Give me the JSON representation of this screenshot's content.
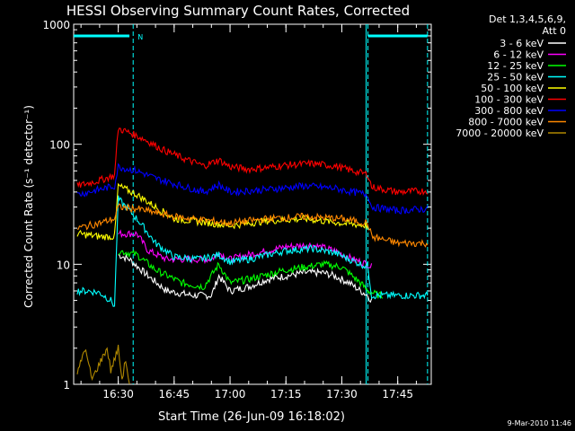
{
  "chart_data": {
    "type": "line",
    "title": "HESSI Observing Summary Count Rates, Corrected",
    "ylabel": "Corrected Count Rate (s⁻¹ detector⁻¹)",
    "xlabel": "Start Time (26-Jun-09 16:18:02)",
    "x_ticks": [
      "16:30",
      "16:45",
      "17:00",
      "17:15",
      "17:30",
      "17:45"
    ],
    "y_ticks": [
      "1",
      "10",
      "100",
      "1000"
    ],
    "y_scale": "log",
    "ylim": [
      1,
      1000
    ],
    "xlim": [
      "16:18:02",
      "17:54"
    ],
    "legend_header": [
      "Det 1,3,4,5,6,9,",
      "Att 0"
    ],
    "legend_placement": "right",
    "footer_date": "9-Mar-2010 11:46",
    "event_marks": [
      {
        "time": "16:34",
        "label": "N"
      },
      {
        "time": "17:37",
        "label": ""
      },
      {
        "time": "17:53",
        "label": ""
      }
    ],
    "flag_bars": {
      "color": "#00ffff",
      "value": 800,
      "segments": [
        [
          "16:18:02",
          "16:33"
        ],
        [
          "17:37",
          "17:53"
        ]
      ]
    },
    "series": [
      {
        "name": "3 - 6 keV",
        "color": "#ffffff",
        "points": [
          [
            "16:30",
            12
          ],
          [
            "16:33",
            11
          ],
          [
            "16:38",
            8
          ],
          [
            "16:43",
            6
          ],
          [
            "16:50",
            5.5
          ],
          [
            "16:55",
            5.5
          ],
          [
            "16:57",
            8
          ],
          [
            "17:00",
            6
          ],
          [
            "17:05",
            6.5
          ],
          [
            "17:10",
            7.5
          ],
          [
            "17:15",
            8
          ],
          [
            "17:20",
            8.5
          ],
          [
            "17:25",
            8.5
          ],
          [
            "17:28",
            8
          ],
          [
            "17:32",
            7
          ],
          [
            "17:35",
            6
          ],
          [
            "17:37",
            5.5
          ],
          [
            "17:38",
            5
          ]
        ]
      },
      {
        "name": "6 - 12 keV",
        "color": "#ff00ff",
        "points": [
          [
            "16:30",
            18
          ],
          [
            "16:35",
            18
          ],
          [
            "16:38",
            13
          ],
          [
            "16:43",
            11
          ],
          [
            "16:50",
            11
          ],
          [
            "16:55",
            11
          ],
          [
            "16:57",
            12.5
          ],
          [
            "17:00",
            11
          ],
          [
            "17:05",
            12
          ],
          [
            "17:15",
            14
          ],
          [
            "17:22",
            14.5
          ],
          [
            "17:28",
            13
          ],
          [
            "17:33",
            11
          ],
          [
            "17:37",
            10
          ],
          [
            "17:38",
            9.5
          ]
        ]
      },
      {
        "name": "12 - 25 keV",
        "color": "#00ff00",
        "points": [
          [
            "16:30",
            13
          ],
          [
            "16:35",
            12
          ],
          [
            "16:40",
            9
          ],
          [
            "16:47",
            7
          ],
          [
            "16:53",
            6.5
          ],
          [
            "16:57",
            10
          ],
          [
            "17:00",
            7
          ],
          [
            "17:05",
            7.5
          ],
          [
            "17:15",
            9
          ],
          [
            "17:25",
            10
          ],
          [
            "17:30",
            9.5
          ],
          [
            "17:35",
            7
          ],
          [
            "17:37",
            6
          ],
          [
            "17:40",
            5.5
          ],
          [
            "17:41",
            5.5
          ]
        ]
      },
      {
        "name": "25 - 50 keV",
        "color": "#00ffff",
        "points": [
          [
            "16:19",
            6
          ],
          [
            "16:22",
            6
          ],
          [
            "16:25",
            5.8
          ],
          [
            "16:28",
            5
          ],
          [
            "16:29",
            4.5
          ],
          [
            "16:30",
            35
          ],
          [
            "16:33",
            28
          ],
          [
            "16:36",
            22
          ],
          [
            "16:40",
            15
          ],
          [
            "16:45",
            11.5
          ],
          [
            "16:52",
            11
          ],
          [
            "16:57",
            12
          ],
          [
            "17:00",
            10.5
          ],
          [
            "17:05",
            11
          ],
          [
            "17:15",
            13
          ],
          [
            "17:22",
            13.5
          ],
          [
            "17:28",
            12.5
          ],
          [
            "17:32",
            11
          ],
          [
            "17:37",
            9.5
          ],
          [
            "17:38",
            5.5
          ],
          [
            "17:45",
            5.5
          ],
          [
            "17:53",
            5.5
          ]
        ]
      },
      {
        "name": "50 - 100 keV",
        "color": "#ffff00",
        "points": [
          [
            "16:19",
            18
          ],
          [
            "16:25",
            17
          ],
          [
            "16:29",
            17
          ],
          [
            "16:30",
            45
          ],
          [
            "16:35",
            38
          ],
          [
            "16:40",
            30
          ],
          [
            "16:45",
            24
          ],
          [
            "16:55",
            22
          ],
          [
            "17:00",
            21
          ],
          [
            "17:10",
            23
          ],
          [
            "17:20",
            24
          ],
          [
            "17:30",
            22
          ],
          [
            "17:37",
            21
          ]
        ]
      },
      {
        "name": "100 - 300 keV",
        "color": "#ff0000",
        "points": [
          [
            "16:19",
            45
          ],
          [
            "16:25",
            50
          ],
          [
            "16:29",
            55
          ],
          [
            "16:30",
            135
          ],
          [
            "16:33",
            125
          ],
          [
            "16:37",
            110
          ],
          [
            "16:42",
            90
          ],
          [
            "16:48",
            75
          ],
          [
            "16:53",
            66
          ],
          [
            "16:57",
            74
          ],
          [
            "17:00",
            65
          ],
          [
            "17:05",
            62
          ],
          [
            "17:10",
            64
          ],
          [
            "17:15",
            67
          ],
          [
            "17:22",
            69
          ],
          [
            "17:28",
            66
          ],
          [
            "17:33",
            60
          ],
          [
            "17:37",
            56
          ],
          [
            "17:38",
            44
          ],
          [
            "17:45",
            40
          ],
          [
            "17:53",
            41
          ]
        ]
      },
      {
        "name": "300 - 800 keV",
        "color": "#0000ff",
        "points": [
          [
            "16:19",
            38
          ],
          [
            "16:25",
            42
          ],
          [
            "16:29",
            45
          ],
          [
            "16:30",
            65
          ],
          [
            "16:35",
            60
          ],
          [
            "16:40",
            52
          ],
          [
            "16:47",
            45
          ],
          [
            "16:53",
            40
          ],
          [
            "16:57",
            46
          ],
          [
            "17:00",
            40
          ],
          [
            "17:10",
            42
          ],
          [
            "17:20",
            45
          ],
          [
            "17:28",
            43
          ],
          [
            "17:33",
            40
          ],
          [
            "17:37",
            38
          ],
          [
            "17:38",
            30
          ],
          [
            "17:45",
            28
          ],
          [
            "17:53",
            29
          ]
        ]
      },
      {
        "name": "800 - 7000 keV",
        "color": "#ff8800",
        "points": [
          [
            "16:19",
            20
          ],
          [
            "16:25",
            22
          ],
          [
            "16:29",
            24
          ],
          [
            "16:30",
            30
          ],
          [
            "16:35",
            29
          ],
          [
            "16:45",
            25
          ],
          [
            "16:55",
            23
          ],
          [
            "17:00",
            22
          ],
          [
            "17:10",
            24
          ],
          [
            "17:20",
            25
          ],
          [
            "17:30",
            24
          ],
          [
            "17:37",
            22
          ],
          [
            "17:38",
            17
          ],
          [
            "17:45",
            15
          ],
          [
            "17:53",
            15
          ]
        ]
      },
      {
        "name": "7000 - 20000 keV",
        "color": "#b08800",
        "points": [
          [
            "16:19",
            1.2
          ],
          [
            "16:21",
            2
          ],
          [
            "16:23",
            1.1
          ],
          [
            "16:25",
            1.5
          ],
          [
            "16:27",
            2
          ],
          [
            "16:28",
            1.3
          ],
          [
            "16:30",
            2
          ],
          [
            "16:31",
            1.1
          ],
          [
            "16:32",
            1.6
          ],
          [
            "16:33",
            1
          ]
        ]
      }
    ]
  }
}
